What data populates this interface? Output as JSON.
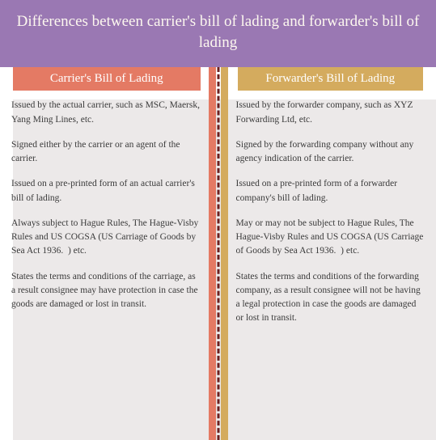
{
  "colors": {
    "header_bg": "#9a78b3",
    "header_text": "#fdf8ef",
    "divider": "#6b1f1f",
    "left_accent": "#e47a64",
    "left_title_bg": "#e47a64",
    "left_bg_block": "#ece9e9",
    "right_accent": "#d4ab5e",
    "right_title_bg": "#d4ab5e",
    "right_bg_block": "#ece9e9",
    "body_text": "#3a3a3a"
  },
  "header": {
    "title": "Differences between carrier's bill of lading and forwarder's bill of lading"
  },
  "left": {
    "title": "Carrier's Bill of Lading",
    "points": [
      "Issued by the actual carrier, such as MSC, Maersk, Yang Ming Lines, etc.",
      "Signed either by the carrier or an agent of the carrier.",
      "Issued on a pre-printed form of an actual carrier's bill of lading.",
      "Always subject to Hague Rules, The Hague-Visby Rules and US COGSA (US Carriage of Goods by Sea Act 1936.  ) etc.",
      "States the terms and conditions of the carriage, as a result consignee may have protection in case the goods are damaged or lost in transit."
    ]
  },
  "right": {
    "title": "Forwarder's Bill of Lading",
    "points": [
      "Issued by the forwarder company, such as XYZ Forwarding Ltd, etc.",
      "Signed by the forwarding company without any agency indication of the carrier.",
      "Issued on a pre-printed form of a forwarder company's bill of lading.",
      "May or may not be subject to Hague Rules, The Hague-Visby Rules and US COGSA (US Carriage of Goods by Sea Act 1936.  ) etc.",
      "States the terms and conditions of the forwarding company, as a result consignee will not be having a legal protection in case the goods are damaged or lost in transit."
    ]
  }
}
